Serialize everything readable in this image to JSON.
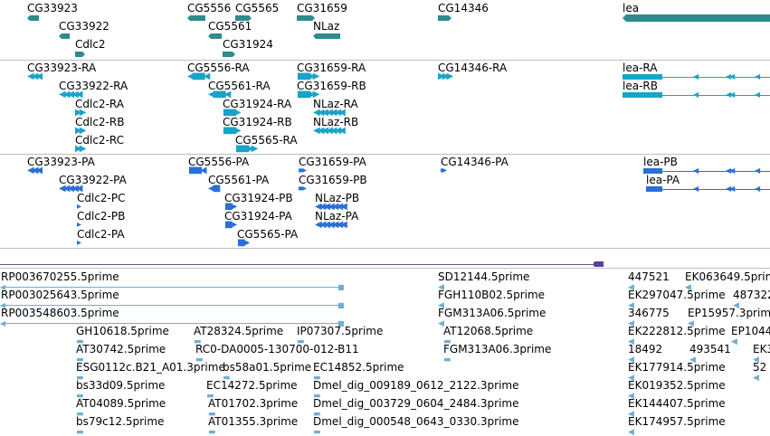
{
  "colors": {
    "gene": "#2e8b8b",
    "transcript": "#1aa3c8",
    "protein": "#2a6fd6",
    "est": "#6faed3",
    "separator": "#bfbfbf",
    "contig_line": "#5a5a8a",
    "contig_end": "#5a3fa0"
  },
  "tracks": {
    "genes": [
      {
        "name": "CG33923",
        "strand": "-"
      },
      {
        "name": "CG33922",
        "strand": "-"
      },
      {
        "name": "Cdlc2",
        "strand": "+"
      },
      {
        "name": "CG5556",
        "strand": "-"
      },
      {
        "name": "CG5565",
        "strand": "+"
      },
      {
        "name": "CG5561",
        "strand": "-"
      },
      {
        "name": "CG31924",
        "strand": "+"
      },
      {
        "name": "CG31659",
        "strand": "+"
      },
      {
        "name": "NLaz",
        "strand": "-"
      },
      {
        "name": "CG14346",
        "strand": "+"
      },
      {
        "name": "lea",
        "strand": "-"
      }
    ],
    "transcripts": [
      {
        "name": "CG33923-RA"
      },
      {
        "name": "CG33922-RA"
      },
      {
        "name": "Cdlc2-RA"
      },
      {
        "name": "Cdlc2-RB"
      },
      {
        "name": "Cdlc2-RC"
      },
      {
        "name": "CG5556-RA"
      },
      {
        "name": "CG5561-RA"
      },
      {
        "name": "CG31924-RA"
      },
      {
        "name": "CG31924-RB"
      },
      {
        "name": "CG5565-RA"
      },
      {
        "name": "CG31659-RA"
      },
      {
        "name": "CG31659-RB"
      },
      {
        "name": "NLaz-RA"
      },
      {
        "name": "NLaz-RB"
      },
      {
        "name": "CG14346-RA"
      },
      {
        "name": "lea-RA"
      },
      {
        "name": "lea-RB"
      }
    ],
    "proteins": [
      {
        "name": "CG33923-PA"
      },
      {
        "name": "CG33922-PA"
      },
      {
        "name": "Cdlc2-PC"
      },
      {
        "name": "Cdlc2-PB"
      },
      {
        "name": "Cdlc2-PA"
      },
      {
        "name": "CG5556-PA"
      },
      {
        "name": "CG5561-PA"
      },
      {
        "name": "CG31924-PB"
      },
      {
        "name": "CG31924-PA"
      },
      {
        "name": "CG5565-PA"
      },
      {
        "name": "CG31659-PA"
      },
      {
        "name": "CG31659-PB"
      },
      {
        "name": "NLaz-PB"
      },
      {
        "name": "NLaz-PA"
      },
      {
        "name": "CG14346-PA"
      },
      {
        "name": "lea-PB"
      },
      {
        "name": "lea-PA"
      }
    ],
    "ests": [
      {
        "name": "RP003670255.5prime"
      },
      {
        "name": "RP003025643.5prime"
      },
      {
        "name": "RP003548603.5prime"
      },
      {
        "name": "GH10618.5prime"
      },
      {
        "name": "AT28324.5prime"
      },
      {
        "name": "IP07307.5prime"
      },
      {
        "name": "AT30742.5prime"
      },
      {
        "name": "RC0-DA0005-130700-012-B11"
      },
      {
        "name": "ESG0112c.B21_A01.3prime"
      },
      {
        "name": "bs58a01.5prime"
      },
      {
        "name": "EC14852.5prime"
      },
      {
        "name": "bs33d09.5prime"
      },
      {
        "name": "EC14272.5prime"
      },
      {
        "name": "Dmel_dig_009189_0612_2122.3prime"
      },
      {
        "name": "AT04089.5prime"
      },
      {
        "name": "AT01702.3prime"
      },
      {
        "name": "Dmel_dig_003729_0604_2484.3prime"
      },
      {
        "name": "bs79c12.5prime"
      },
      {
        "name": "AT01355.3prime"
      },
      {
        "name": "Dmel_dig_000548_0643_0330.3prime"
      },
      {
        "name": "SD12144.5prime"
      },
      {
        "name": "FGH110B02.5prime"
      },
      {
        "name": "FGM313A06.5prime"
      },
      {
        "name": "AT12068.5prime"
      },
      {
        "name": "FGM313A06.3prime"
      },
      {
        "name": "447521"
      },
      {
        "name": "EK063649.5prime"
      },
      {
        "name": "EK297047.5prime"
      },
      {
        "name": "487322"
      },
      {
        "name": "346775"
      },
      {
        "name": "EP15957.3prime"
      },
      {
        "name": "EK222812.5prime"
      },
      {
        "name": "EP1044"
      },
      {
        "name": "18492"
      },
      {
        "name": "493541"
      },
      {
        "name": "EK3"
      },
      {
        "name": "EK177914.5prime"
      },
      {
        "name": "52"
      },
      {
        "name": "EK019352.5prime"
      },
      {
        "name": "EK144407.5prime"
      },
      {
        "name": "EK174957.5prime"
      }
    ]
  }
}
